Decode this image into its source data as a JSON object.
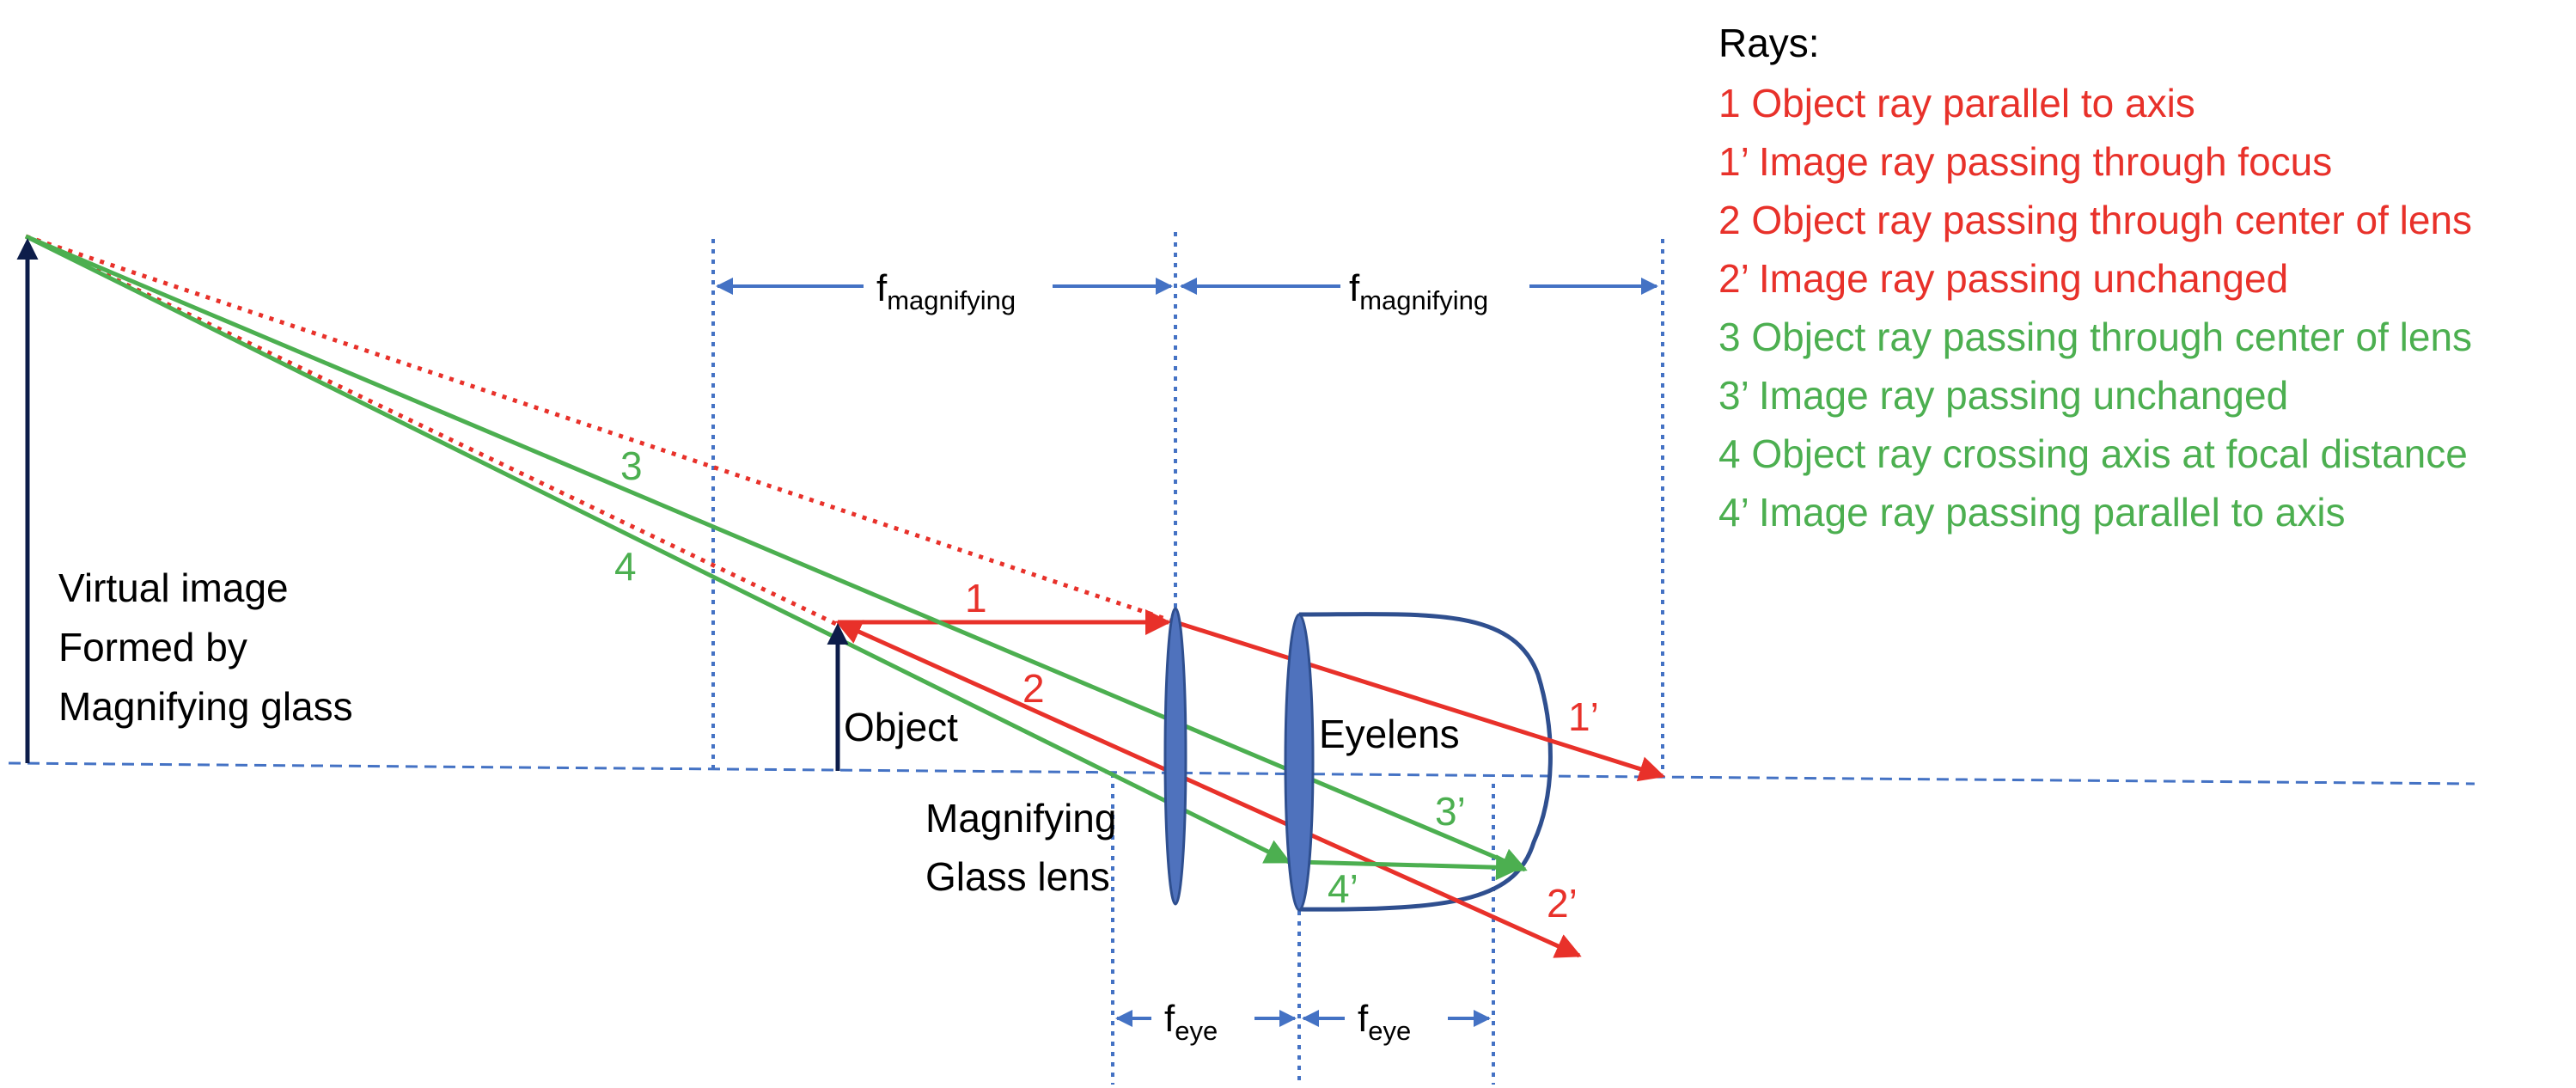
{
  "colors": {
    "red_rays": "#e8312a",
    "green_rays": "#4caf50",
    "blue_guides": "#4472c4",
    "lens_fill": "#4f72bd",
    "lens_edge": "#2f4f8f",
    "eye_outline": "#2f4f8f",
    "arrows_black": "#0d1d4a",
    "text_black": "#000000"
  },
  "legend": {
    "title": "Rays:",
    "items": [
      {
        "text": "1 Object ray parallel to axis",
        "color": "#e8312a"
      },
      {
        "text": "1’ Image ray passing through focus",
        "color": "#e8312a"
      },
      {
        "text": "2 Object ray passing through center of lens",
        "color": "#e8312a"
      },
      {
        "text": "2’ Image ray passing unchanged",
        "color": "#e8312a"
      },
      {
        "text": "3 Object ray passing through center of lens",
        "color": "#4caf50"
      },
      {
        "text": "3’ Image ray passing unchanged",
        "color": "#4caf50"
      },
      {
        "text": "4 Object ray crossing axis at focal distance",
        "color": "#4caf50"
      },
      {
        "text": "4’ Image ray passing parallel to axis",
        "color": "#4caf50"
      }
    ]
  },
  "labels": {
    "virtual_image": [
      "Virtual image",
      "Formed by",
      "Magnifying glass"
    ],
    "object": "Object",
    "magnifying_lens": [
      "Magnifying",
      "Glass lens"
    ],
    "eyelens": "Eyelens"
  },
  "dimensions": {
    "f_main": "f",
    "f_magnifying_sub": "magnifying",
    "f_eye_sub": "eye"
  },
  "ray_labels": {
    "r1": "1",
    "r1p": "1’",
    "r2": "2",
    "r2p": "2’",
    "r3": "3",
    "r3p": "3’",
    "r4": "4",
    "r4p": "4’"
  }
}
